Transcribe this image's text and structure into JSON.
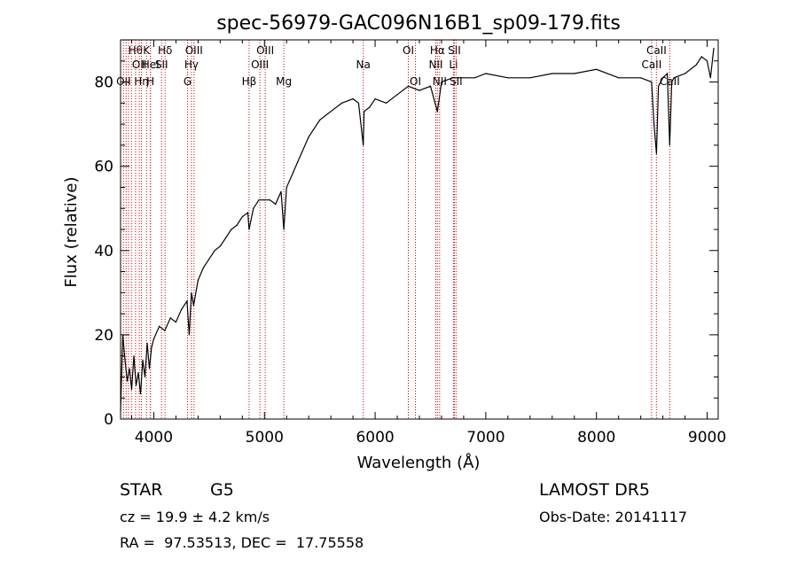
{
  "chart_data": {
    "type": "line",
    "title": "spec-56979-GAC096N16B1_sp09-179.fits",
    "xlabel": "Wavelength (Å)",
    "ylabel": "Flux (relative)",
    "xlim": [
      3700,
      9100
    ],
    "ylim": [
      0,
      90
    ],
    "x_ticks": [
      4000,
      5000,
      6000,
      7000,
      8000,
      9000
    ],
    "y_ticks": [
      0,
      20,
      40,
      60,
      80
    ],
    "grid": false,
    "series": [
      {
        "color": "#000000",
        "x": [
          3700,
          3720,
          3740,
          3760,
          3780,
          3800,
          3820,
          3840,
          3860,
          3880,
          3900,
          3920,
          3940,
          3960,
          3980,
          4000,
          4050,
          4100,
          4150,
          4200,
          4250,
          4300,
          4320,
          4340,
          4360,
          4400,
          4450,
          4500,
          4550,
          4600,
          4650,
          4700,
          4750,
          4800,
          4850,
          4861,
          4900,
          4950,
          5000,
          5050,
          5100,
          5150,
          5175,
          5200,
          5250,
          5300,
          5400,
          5500,
          5600,
          5700,
          5800,
          5850,
          5893,
          5900,
          5950,
          6000,
          6100,
          6200,
          6300,
          6400,
          6500,
          6563,
          6600,
          6700,
          6800,
          6900,
          7000,
          7200,
          7400,
          7600,
          7800,
          8000,
          8200,
          8400,
          8498,
          8520,
          8542,
          8560,
          8600,
          8640,
          8662,
          8680,
          8700,
          8800,
          8900,
          8950,
          9000,
          9030,
          9060
        ],
        "y": [
          2,
          20,
          14,
          9,
          12,
          7,
          15,
          8,
          11,
          6,
          14,
          10,
          18,
          12,
          17,
          19,
          22,
          21,
          24,
          23,
          26,
          28,
          20,
          30,
          27,
          33,
          36,
          38,
          40,
          41,
          43,
          45,
          46,
          48,
          49,
          45,
          50,
          52,
          52,
          52,
          51,
          54,
          45,
          55,
          58,
          61,
          67,
          71,
          73,
          75,
          76,
          75,
          65,
          73,
          74,
          76,
          75,
          77,
          79,
          78,
          79,
          73,
          80,
          81,
          81,
          81,
          82,
          81,
          81,
          82,
          82,
          83,
          81,
          81,
          80,
          70,
          63,
          79,
          81,
          82,
          65,
          80,
          81,
          82,
          84,
          86,
          85,
          81,
          88
        ]
      }
    ],
    "lines": [
      {
        "x": 3727,
        "labels": [
          "OII"
        ],
        "row": [
          3
        ]
      },
      {
        "x": 3750,
        "labels": [],
        "row": []
      },
      {
        "x": 3771,
        "labels": [],
        "row": []
      },
      {
        "x": 3798,
        "labels": [],
        "row": []
      },
      {
        "x": 3835,
        "labels": [
          "Hθ"
        ],
        "row": [
          1
        ]
      },
      {
        "x": 3869,
        "labels": [
          "OII"
        ],
        "row": [
          2
        ]
      },
      {
        "x": 3889,
        "labels": [
          "Hη"
        ],
        "row": [
          3
        ]
      },
      {
        "x": 3934,
        "labels": [
          "K"
        ],
        "row": [
          1
        ]
      },
      {
        "x": 3970,
        "labels": [
          "HeI"
        ],
        "row": [
          2
        ]
      },
      {
        "x": 3970,
        "labels": [
          "H"
        ],
        "row": [
          3
        ]
      },
      {
        "x": 4070,
        "labels": [
          "SII"
        ],
        "row": [
          2
        ]
      },
      {
        "x": 4102,
        "labels": [
          "Hδ"
        ],
        "row": [
          1
        ]
      },
      {
        "x": 4305,
        "labels": [
          "G"
        ],
        "row": [
          3
        ]
      },
      {
        "x": 4340,
        "labels": [
          "Hγ"
        ],
        "row": [
          2
        ]
      },
      {
        "x": 4363,
        "labels": [
          "OIII"
        ],
        "row": [
          1
        ]
      },
      {
        "x": 4861,
        "labels": [
          "Hβ"
        ],
        "row": [
          3
        ]
      },
      {
        "x": 4959,
        "labels": [
          "OIII"
        ],
        "row": [
          2
        ]
      },
      {
        "x": 5007,
        "labels": [
          "OIII"
        ],
        "row": [
          1
        ]
      },
      {
        "x": 5175,
        "labels": [
          "Mg"
        ],
        "row": [
          3
        ]
      },
      {
        "x": 5893,
        "labels": [
          "Na"
        ],
        "row": [
          2
        ]
      },
      {
        "x": 6300,
        "labels": [
          "OI"
        ],
        "row": [
          1
        ]
      },
      {
        "x": 6364,
        "labels": [
          "OI"
        ],
        "row": [
          3
        ]
      },
      {
        "x": 6548,
        "labels": [
          "NII"
        ],
        "row": [
          2
        ]
      },
      {
        "x": 6563,
        "labels": [
          "Hα"
        ],
        "row": [
          1
        ]
      },
      {
        "x": 6583,
        "labels": [
          "NII"
        ],
        "row": [
          3
        ]
      },
      {
        "x": 6708,
        "labels": [
          "Li"
        ],
        "row": [
          2
        ]
      },
      {
        "x": 6716,
        "labels": [
          "SII"
        ],
        "row": [
          1
        ]
      },
      {
        "x": 6731,
        "labels": [
          "SII"
        ],
        "row": [
          3
        ]
      },
      {
        "x": 8498,
        "labels": [
          "CaII"
        ],
        "row": [
          2
        ]
      },
      {
        "x": 8542,
        "labels": [
          "CaII"
        ],
        "row": [
          1
        ]
      },
      {
        "x": 8662,
        "labels": [
          "CaII"
        ],
        "row": [
          3
        ]
      }
    ]
  },
  "info": {
    "class_label": "STAR",
    "subclass": "G5",
    "survey": "LAMOST DR5",
    "redshift_line": "cz = 19.9 ± 4.2 km/s",
    "obs_date_line": "Obs-Date: 20141117",
    "coords_line": "RA =  97.53513, DEC =  17.75558"
  }
}
